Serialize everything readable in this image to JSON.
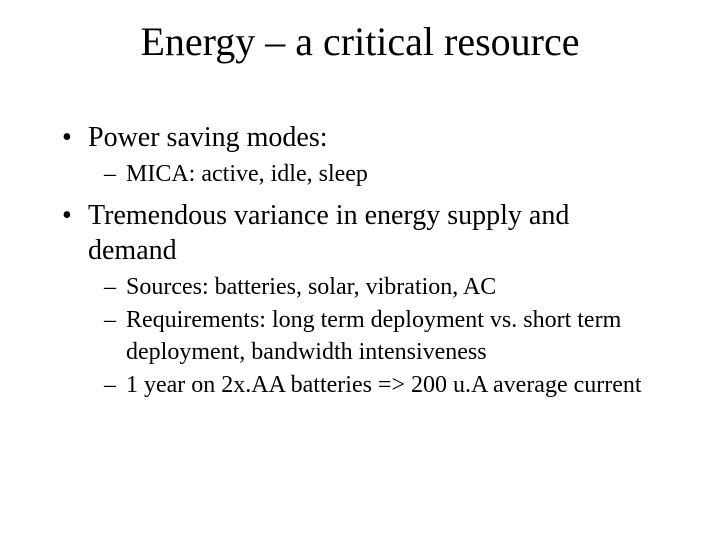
{
  "title": "Energy – a critical resource",
  "bullets": [
    {
      "text": "Power saving modes:",
      "sub": [
        "MICA: active, idle, sleep"
      ]
    },
    {
      "text": "Tremendous variance in energy supply and demand",
      "sub": [
        "Sources: batteries, solar, vibration, AC",
        "Requirements: long term deployment vs. short term deployment, bandwidth intensiveness",
        "1 year on 2x.AA batteries => 200 u.A average current"
      ]
    }
  ],
  "colors": {
    "background": "#ffffff",
    "text": "#000000"
  },
  "typography": {
    "title_fontsize": 40,
    "bullet_fontsize": 28,
    "sub_fontsize": 24,
    "font_family": "Times New Roman"
  }
}
